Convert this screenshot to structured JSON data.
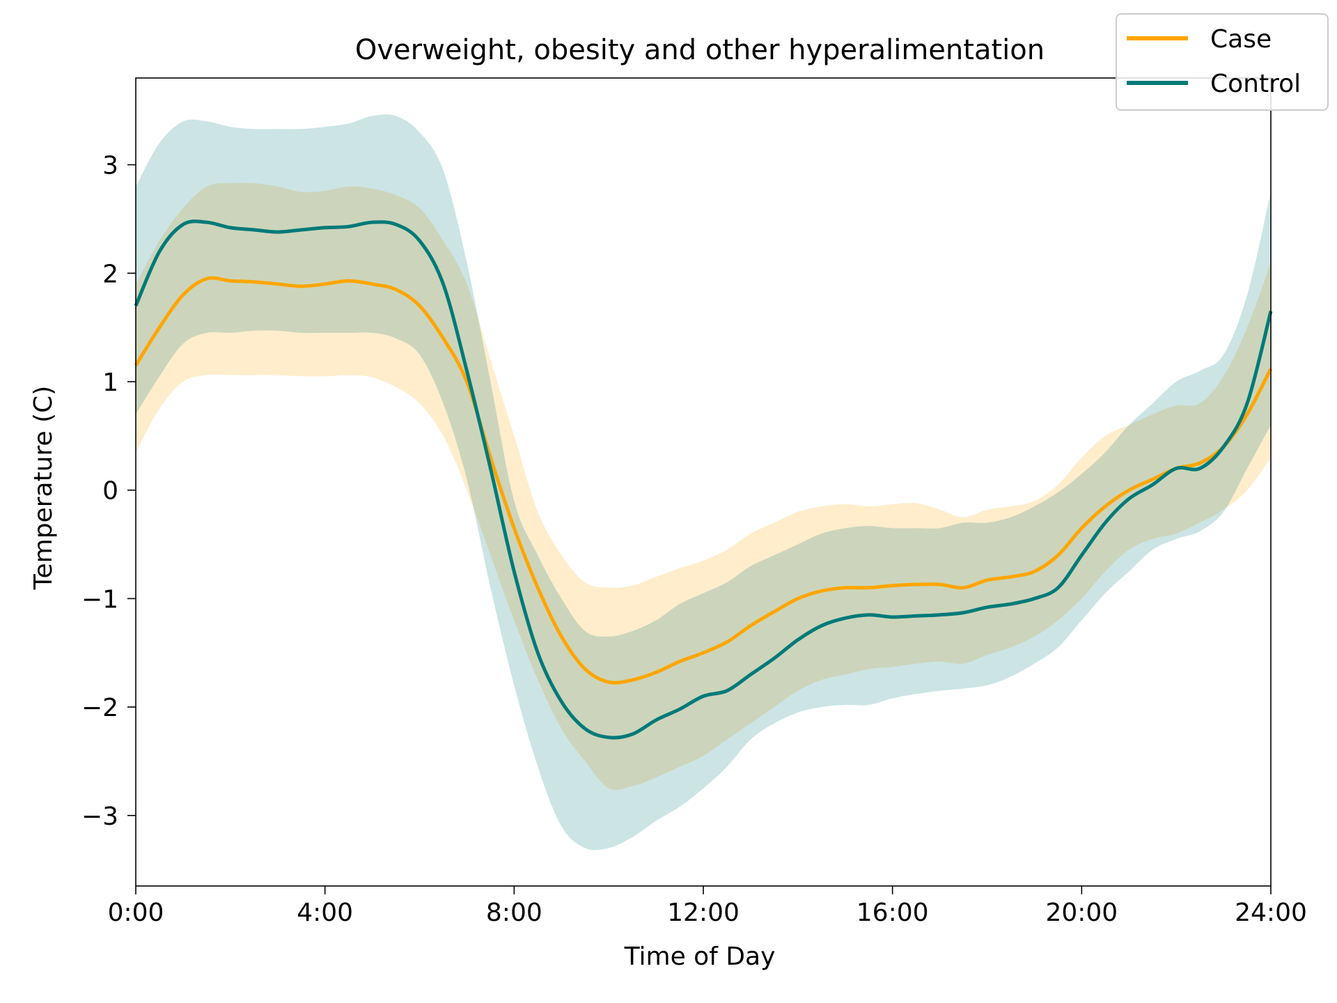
{
  "chart_data": {
    "type": "line",
    "title": "Overweight, obesity and other hyperalimentation",
    "xlabel": "Time of Day",
    "ylabel": "Temperature (C)",
    "xlim": [
      0,
      24
    ],
    "ylim": [
      -3.65,
      3.8
    ],
    "x_ticks": [
      {
        "value": 0,
        "label": "0:00"
      },
      {
        "value": 4,
        "label": "4:00"
      },
      {
        "value": 8,
        "label": "8:00"
      },
      {
        "value": 12,
        "label": "12:00"
      },
      {
        "value": 16,
        "label": "16:00"
      },
      {
        "value": 20,
        "label": "20:00"
      },
      {
        "value": 24,
        "label": "24:00"
      }
    ],
    "y_ticks": [
      {
        "value": 3,
        "label": "3"
      },
      {
        "value": 2,
        "label": "2"
      },
      {
        "value": 1,
        "label": "1"
      },
      {
        "value": 0,
        "label": "0"
      },
      {
        "value": -1,
        "label": "−1"
      },
      {
        "value": -2,
        "label": "−2"
      },
      {
        "value": -3,
        "label": "−3"
      }
    ],
    "grid": false,
    "legend_position": "top-right",
    "x": [
      0,
      0.5,
      1,
      1.5,
      2,
      2.5,
      3,
      3.5,
      4,
      4.5,
      5,
      5.5,
      6,
      6.5,
      7,
      7.5,
      8,
      8.5,
      9,
      9.5,
      10,
      10.5,
      11,
      11.5,
      12,
      12.5,
      13,
      13.5,
      14,
      14.5,
      15,
      15.5,
      16,
      16.5,
      17,
      17.5,
      18,
      18.5,
      19,
      19.5,
      20,
      20.5,
      21,
      21.5,
      22,
      22.5,
      23,
      23.5,
      24
    ],
    "series": [
      {
        "name": "Case",
        "color": "#ffa500",
        "band_color": "#ffa500",
        "values": [
          1.15,
          1.5,
          1.8,
          1.95,
          1.93,
          1.92,
          1.9,
          1.88,
          1.9,
          1.93,
          1.9,
          1.85,
          1.7,
          1.4,
          1.0,
          0.3,
          -0.35,
          -0.9,
          -1.35,
          -1.65,
          -1.77,
          -1.75,
          -1.68,
          -1.58,
          -1.5,
          -1.4,
          -1.25,
          -1.12,
          -1.0,
          -0.93,
          -0.9,
          -0.9,
          -0.88,
          -0.87,
          -0.87,
          -0.9,
          -0.83,
          -0.8,
          -0.75,
          -0.6,
          -0.35,
          -0.15,
          0.0,
          0.1,
          0.2,
          0.25,
          0.4,
          0.7,
          1.12
        ],
        "lower": [
          0.35,
          0.75,
          1.0,
          1.06,
          1.06,
          1.06,
          1.06,
          1.05,
          1.05,
          1.06,
          1.04,
          0.95,
          0.8,
          0.5,
          0.0,
          -0.6,
          -1.2,
          -1.75,
          -2.2,
          -2.5,
          -2.75,
          -2.73,
          -2.65,
          -2.55,
          -2.45,
          -2.3,
          -2.15,
          -2.0,
          -1.85,
          -1.75,
          -1.7,
          -1.65,
          -1.63,
          -1.6,
          -1.58,
          -1.6,
          -1.52,
          -1.45,
          -1.35,
          -1.2,
          -1.0,
          -0.75,
          -0.55,
          -0.45,
          -0.4,
          -0.3,
          -0.18,
          0.0,
          0.3
        ],
        "upper": [
          1.9,
          2.3,
          2.6,
          2.8,
          2.83,
          2.83,
          2.8,
          2.75,
          2.76,
          2.8,
          2.78,
          2.72,
          2.6,
          2.3,
          1.9,
          1.2,
          0.5,
          -0.2,
          -0.6,
          -0.85,
          -0.9,
          -0.88,
          -0.8,
          -0.72,
          -0.65,
          -0.55,
          -0.4,
          -0.3,
          -0.2,
          -0.15,
          -0.13,
          -0.15,
          -0.13,
          -0.12,
          -0.18,
          -0.25,
          -0.18,
          -0.15,
          -0.1,
          0.05,
          0.3,
          0.5,
          0.6,
          0.7,
          0.78,
          0.8,
          1.05,
          1.5,
          2.1
        ]
      },
      {
        "name": "Control",
        "color": "#007a78",
        "band_color": "#007a78",
        "values": [
          1.7,
          2.2,
          2.45,
          2.47,
          2.42,
          2.4,
          2.38,
          2.4,
          2.42,
          2.43,
          2.47,
          2.45,
          2.3,
          1.9,
          1.1,
          0.2,
          -0.75,
          -1.5,
          -1.95,
          -2.2,
          -2.28,
          -2.25,
          -2.12,
          -2.02,
          -1.9,
          -1.85,
          -1.7,
          -1.55,
          -1.38,
          -1.25,
          -1.18,
          -1.15,
          -1.17,
          -1.16,
          -1.15,
          -1.13,
          -1.08,
          -1.05,
          -1.0,
          -0.9,
          -0.6,
          -0.3,
          -0.08,
          0.05,
          0.2,
          0.2,
          0.4,
          0.8,
          1.65
        ],
        "lower": [
          0.7,
          1.05,
          1.35,
          1.45,
          1.45,
          1.47,
          1.47,
          1.45,
          1.45,
          1.45,
          1.45,
          1.4,
          1.25,
          0.8,
          0.1,
          -0.9,
          -1.8,
          -2.55,
          -3.1,
          -3.3,
          -3.3,
          -3.2,
          -3.05,
          -2.92,
          -2.75,
          -2.55,
          -2.3,
          -2.15,
          -2.05,
          -2.0,
          -1.98,
          -1.98,
          -1.92,
          -1.88,
          -1.85,
          -1.83,
          -1.8,
          -1.72,
          -1.6,
          -1.45,
          -1.2,
          -0.95,
          -0.75,
          -0.55,
          -0.45,
          -0.38,
          -0.2,
          0.2,
          0.6
        ],
        "upper": [
          2.8,
          3.2,
          3.4,
          3.4,
          3.35,
          3.33,
          3.33,
          3.33,
          3.35,
          3.38,
          3.45,
          3.45,
          3.3,
          2.95,
          2.1,
          1.0,
          -0.1,
          -0.6,
          -1.0,
          -1.3,
          -1.35,
          -1.3,
          -1.2,
          -1.05,
          -0.95,
          -0.85,
          -0.7,
          -0.6,
          -0.5,
          -0.4,
          -0.35,
          -0.33,
          -0.35,
          -0.35,
          -0.35,
          -0.3,
          -0.3,
          -0.25,
          -0.15,
          -0.02,
          0.15,
          0.35,
          0.6,
          0.8,
          1.0,
          1.1,
          1.25,
          1.8,
          2.75
        ]
      }
    ]
  }
}
